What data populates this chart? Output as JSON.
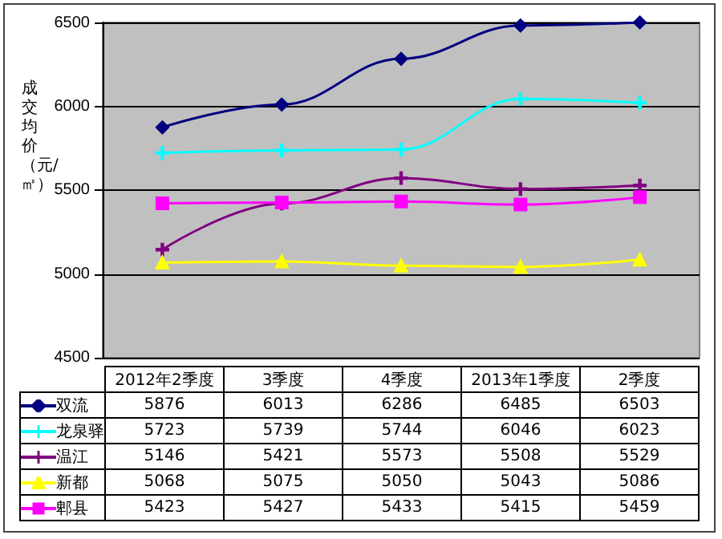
{
  "chart_data": {
    "type": "line",
    "ylabel": "成交均价（元/㎡）",
    "categories": [
      "2012年2季度",
      "3季度",
      "4季度",
      "2013年1季度",
      "2季度"
    ],
    "series": [
      {
        "name": "双流",
        "color": "#000080",
        "marker": "diamond",
        "values": [
          5876,
          6013,
          6286,
          6485,
          6503
        ]
      },
      {
        "name": "龙泉驿",
        "color": "#00ffff",
        "marker": "cross",
        "values": [
          5723,
          5739,
          5744,
          6046,
          6023
        ]
      },
      {
        "name": "温江",
        "color": "#800080",
        "marker": "cross",
        "values": [
          5146,
          5421,
          5573,
          5508,
          5529
        ]
      },
      {
        "name": "新都",
        "color": "#ffff00",
        "marker": "triangle",
        "values": [
          5068,
          5075,
          5050,
          5043,
          5086
        ]
      },
      {
        "name": "郫县",
        "color": "#ff00ff",
        "marker": "square",
        "values": [
          5423,
          5427,
          5433,
          5415,
          5459
        ]
      }
    ],
    "ylim": [
      4500,
      6503
    ],
    "yticks": [
      4500,
      5000,
      5500,
      6000,
      6500
    ],
    "grid": "y",
    "legend": "bottom left",
    "data_labels": true
  }
}
